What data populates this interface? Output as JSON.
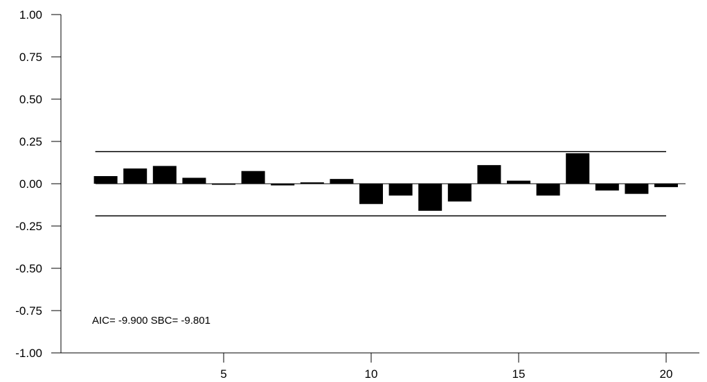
{
  "chart_data": {
    "type": "bar",
    "title": "",
    "xlabel": "",
    "ylabel": "",
    "x": [
      1,
      2,
      3,
      4,
      5,
      6,
      7,
      8,
      9,
      10,
      11,
      12,
      13,
      14,
      15,
      16,
      17,
      18,
      19,
      20
    ],
    "values": [
      0.045,
      0.09,
      0.105,
      0.035,
      -0.002,
      0.075,
      -0.01,
      0.008,
      0.028,
      -0.12,
      -0.07,
      -0.16,
      -0.105,
      0.11,
      0.018,
      -0.07,
      0.18,
      -0.04,
      -0.06,
      -0.02
    ],
    "xlim": [
      0,
      21
    ],
    "ylim": [
      -1.0,
      1.0
    ],
    "x_ticks": [
      5,
      10,
      15,
      20
    ],
    "x_tick_labels": [
      "5",
      "10",
      "15",
      "20"
    ],
    "y_ticks": [
      -1.0,
      -0.75,
      -0.5,
      -0.25,
      0.0,
      0.25,
      0.5,
      0.75,
      1.0
    ],
    "y_tick_labels": [
      "-1.00",
      "-0.75",
      "-0.50",
      "-0.25",
      "0.00",
      "0.25",
      "0.50",
      "0.75",
      "1.00"
    ],
    "confidence_bands": {
      "upper": 0.19,
      "lower": -0.19,
      "x_range": [
        1,
        20
      ]
    },
    "bar_color": "#000000",
    "grid": false,
    "annotation": "AIC= -9.900 SBC= -9.801"
  }
}
